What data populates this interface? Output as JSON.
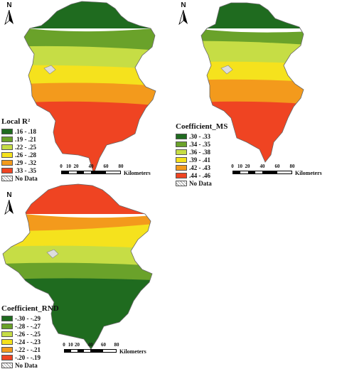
{
  "north_label": "N",
  "scale": {
    "ticks": [
      "0",
      "10",
      "20",
      "40",
      "60",
      "80"
    ],
    "unit": "Kilometers"
  },
  "panels": [
    {
      "id": "local-r2",
      "legend_title": "Local R²",
      "legend": [
        {
          "label": ".16 - .18",
          "color": "#1f6b1f"
        },
        {
          "label": ".19 - .21",
          "color": "#6aa22a"
        },
        {
          "label": ".22 - .25",
          "color": "#c6dd45"
        },
        {
          "label": ".26 - .28",
          "color": "#f5e21d"
        },
        {
          "label": ".29 - .32",
          "color": "#f39a1c"
        },
        {
          "label": ".33 - .35",
          "color": "#ef4422"
        }
      ],
      "no_data_label": "No Data"
    },
    {
      "id": "coefficient-ms",
      "legend_title": "Coefficient_MS",
      "legend": [
        {
          "label": ".30 - .33",
          "color": "#1f6b1f"
        },
        {
          "label": ".34 - .35",
          "color": "#6aa22a"
        },
        {
          "label": ".36 - .38",
          "color": "#c6dd45"
        },
        {
          "label": ".39 - .41",
          "color": "#f5e21d"
        },
        {
          "label": ".42 - .43",
          "color": "#f39a1c"
        },
        {
          "label": ".44 - .46",
          "color": "#ef4422"
        }
      ],
      "no_data_label": "No Data"
    },
    {
      "id": "coefficient-rnd",
      "legend_title": "Coefficient_RND",
      "legend": [
        {
          "label": "-.30 - -.29",
          "color": "#1f6b1f"
        },
        {
          "label": "-.28 - -.27",
          "color": "#6aa22a"
        },
        {
          "label": "-.26 - -.25",
          "color": "#c6dd45"
        },
        {
          "label": "-.24 - -.23",
          "color": "#f5e21d"
        },
        {
          "label": "-.22 - -.21",
          "color": "#f39a1c"
        },
        {
          "label": "-.20 - -.19",
          "color": "#ef4422"
        }
      ],
      "no_data_label": "No Data"
    }
  ]
}
